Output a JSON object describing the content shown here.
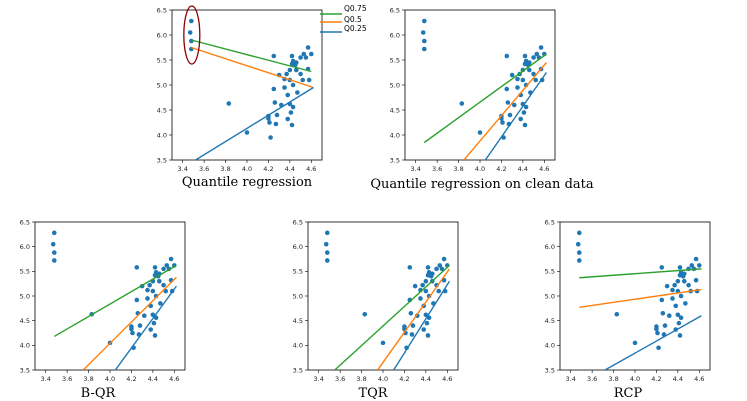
{
  "figure": {
    "colors": {
      "q75": "#2ca02c",
      "q50": "#ff7f0e",
      "q25": "#1f77b4",
      "points": "#1f77b4",
      "highlight": "#8b0000"
    },
    "legend": {
      "q75": "Q0.75",
      "q50": "Q0.5",
      "q25": "Q0.25"
    }
  },
  "chart_data": [
    {
      "type": "scatter",
      "title": "Quantile regression",
      "xlim": [
        3.3,
        4.7
      ],
      "ylim": [
        3.5,
        6.5
      ],
      "xticks": [
        "3.4",
        "3.6",
        "3.8",
        "4.0",
        "4.2",
        "4.4",
        "4.6"
      ],
      "yticks": [
        "3.5",
        "4.0",
        "4.5",
        "5.0",
        "5.5",
        "6.0",
        "6.5"
      ],
      "highlight_outliers": true,
      "legend": true,
      "points": [
        [
          3.48,
          6.28
        ],
        [
          3.47,
          6.05
        ],
        [
          3.48,
          5.88
        ],
        [
          3.48,
          5.72
        ],
        [
          3.83,
          4.63
        ],
        [
          4.0,
          4.05
        ],
        [
          4.2,
          4.38
        ],
        [
          4.2,
          4.33
        ],
        [
          4.21,
          4.25
        ],
        [
          4.22,
          3.95
        ],
        [
          4.25,
          5.58
        ],
        [
          4.25,
          4.92
        ],
        [
          4.26,
          4.65
        ],
        [
          4.28,
          4.4
        ],
        [
          4.27,
          4.22
        ],
        [
          4.3,
          5.2
        ],
        [
          4.32,
          4.6
        ],
        [
          4.35,
          4.95
        ],
        [
          4.35,
          5.12
        ],
        [
          4.37,
          5.22
        ],
        [
          4.38,
          4.8
        ],
        [
          4.38,
          4.32
        ],
        [
          4.4,
          5.3
        ],
        [
          4.4,
          5.1
        ],
        [
          4.4,
          4.62
        ],
        [
          4.41,
          4.45
        ],
        [
          4.42,
          5.58
        ],
        [
          4.42,
          5.42
        ],
        [
          4.42,
          4.2
        ],
        [
          4.43,
          5.48
        ],
        [
          4.43,
          5.0
        ],
        [
          4.43,
          4.56
        ],
        [
          4.45,
          5.4
        ],
        [
          4.46,
          5.45
        ],
        [
          4.46,
          5.3
        ],
        [
          4.47,
          4.85
        ],
        [
          4.5,
          5.55
        ],
        [
          4.5,
          5.22
        ],
        [
          4.52,
          5.1
        ],
        [
          4.53,
          5.62
        ],
        [
          4.55,
          5.55
        ],
        [
          4.57,
          5.75
        ],
        [
          4.57,
          5.32
        ],
        [
          4.58,
          5.1
        ],
        [
          4.6,
          5.62
        ]
      ],
      "series": [
        {
          "name": "Q0.75",
          "x": [
            3.48,
            4.6
          ],
          "y": [
            5.9,
            5.27
          ]
        },
        {
          "name": "Q0.5",
          "x": [
            3.48,
            4.62
          ],
          "y": [
            5.75,
            4.95
          ]
        },
        {
          "name": "Q0.25",
          "x": [
            3.52,
            4.62
          ],
          "y": [
            3.5,
            4.95
          ]
        }
      ]
    },
    {
      "type": "scatter",
      "title": "Quantile regression on clean data",
      "xlim": [
        3.3,
        4.7
      ],
      "ylim": [
        3.5,
        6.5
      ],
      "xticks": [
        "3.4",
        "3.6",
        "3.8",
        "4.0",
        "4.2",
        "4.4",
        "4.6"
      ],
      "yticks": [
        "3.5",
        "4.0",
        "4.5",
        "5.0",
        "5.5",
        "6.0",
        "6.5"
      ],
      "points": [
        [
          3.48,
          6.28
        ],
        [
          3.47,
          6.05
        ],
        [
          3.48,
          5.88
        ],
        [
          3.48,
          5.72
        ],
        [
          3.83,
          4.63
        ],
        [
          4.0,
          4.05
        ],
        [
          4.2,
          4.38
        ],
        [
          4.2,
          4.33
        ],
        [
          4.21,
          4.25
        ],
        [
          4.22,
          3.95
        ],
        [
          4.25,
          5.58
        ],
        [
          4.25,
          4.92
        ],
        [
          4.26,
          4.65
        ],
        [
          4.28,
          4.4
        ],
        [
          4.27,
          4.22
        ],
        [
          4.3,
          5.2
        ],
        [
          4.32,
          4.6
        ],
        [
          4.35,
          4.95
        ],
        [
          4.35,
          5.12
        ],
        [
          4.37,
          5.22
        ],
        [
          4.38,
          4.8
        ],
        [
          4.38,
          4.32
        ],
        [
          4.4,
          5.3
        ],
        [
          4.4,
          5.1
        ],
        [
          4.4,
          4.62
        ],
        [
          4.41,
          4.45
        ],
        [
          4.42,
          5.58
        ],
        [
          4.42,
          5.42
        ],
        [
          4.42,
          4.2
        ],
        [
          4.43,
          5.48
        ],
        [
          4.43,
          5.0
        ],
        [
          4.43,
          4.56
        ],
        [
          4.45,
          5.4
        ],
        [
          4.46,
          5.45
        ],
        [
          4.46,
          5.3
        ],
        [
          4.47,
          4.85
        ],
        [
          4.5,
          5.55
        ],
        [
          4.5,
          5.22
        ],
        [
          4.52,
          5.1
        ],
        [
          4.53,
          5.62
        ],
        [
          4.55,
          5.55
        ],
        [
          4.57,
          5.75
        ],
        [
          4.57,
          5.32
        ],
        [
          4.58,
          5.1
        ],
        [
          4.6,
          5.62
        ]
      ],
      "series": [
        {
          "name": "Q0.75",
          "x": [
            3.48,
            4.62
          ],
          "y": [
            3.85,
            5.62
          ]
        },
        {
          "name": "Q0.5",
          "x": [
            3.85,
            4.62
          ],
          "y": [
            3.5,
            5.45
          ]
        },
        {
          "name": "Q0.25",
          "x": [
            4.05,
            4.62
          ],
          "y": [
            3.5,
            5.25
          ]
        }
      ]
    },
    {
      "type": "scatter",
      "title": "B-QR",
      "xlim": [
        3.3,
        4.7
      ],
      "ylim": [
        3.5,
        6.5
      ],
      "xticks": [
        "3.4",
        "3.6",
        "3.8",
        "4.0",
        "4.2",
        "4.4",
        "4.6"
      ],
      "yticks": [
        "3.5",
        "4.0",
        "4.5",
        "5.0",
        "5.5",
        "6.0",
        "6.5"
      ],
      "points": [
        [
          3.48,
          6.28
        ],
        [
          3.47,
          6.05
        ],
        [
          3.48,
          5.88
        ],
        [
          3.48,
          5.72
        ],
        [
          3.83,
          4.63
        ],
        [
          4.0,
          4.05
        ],
        [
          4.2,
          4.38
        ],
        [
          4.2,
          4.33
        ],
        [
          4.21,
          4.25
        ],
        [
          4.22,
          3.95
        ],
        [
          4.25,
          5.58
        ],
        [
          4.25,
          4.92
        ],
        [
          4.26,
          4.65
        ],
        [
          4.28,
          4.4
        ],
        [
          4.27,
          4.22
        ],
        [
          4.3,
          5.2
        ],
        [
          4.32,
          4.6
        ],
        [
          4.35,
          4.95
        ],
        [
          4.35,
          5.12
        ],
        [
          4.37,
          5.22
        ],
        [
          4.38,
          4.8
        ],
        [
          4.38,
          4.32
        ],
        [
          4.4,
          5.3
        ],
        [
          4.4,
          5.1
        ],
        [
          4.4,
          4.62
        ],
        [
          4.41,
          4.45
        ],
        [
          4.42,
          5.58
        ],
        [
          4.42,
          5.42
        ],
        [
          4.42,
          4.2
        ],
        [
          4.43,
          5.48
        ],
        [
          4.43,
          5.0
        ],
        [
          4.43,
          4.56
        ],
        [
          4.45,
          5.4
        ],
        [
          4.46,
          5.45
        ],
        [
          4.46,
          5.3
        ],
        [
          4.47,
          4.85
        ],
        [
          4.5,
          5.55
        ],
        [
          4.5,
          5.22
        ],
        [
          4.52,
          5.1
        ],
        [
          4.53,
          5.62
        ],
        [
          4.55,
          5.55
        ],
        [
          4.57,
          5.75
        ],
        [
          4.57,
          5.32
        ],
        [
          4.58,
          5.1
        ],
        [
          4.6,
          5.62
        ]
      ],
      "series": [
        {
          "name": "Q0.75",
          "x": [
            3.48,
            4.62
          ],
          "y": [
            4.18,
            5.62
          ]
        },
        {
          "name": "Q0.5",
          "x": [
            3.75,
            4.62
          ],
          "y": [
            3.5,
            5.38
          ]
        },
        {
          "name": "Q0.25",
          "x": [
            4.05,
            4.62
          ],
          "y": [
            3.5,
            5.2
          ]
        }
      ]
    },
    {
      "type": "scatter",
      "title": "TQR",
      "xlim": [
        3.3,
        4.7
      ],
      "ylim": [
        3.5,
        6.5
      ],
      "xticks": [
        "3.4",
        "3.6",
        "3.8",
        "4.0",
        "4.2",
        "4.4",
        "4.6"
      ],
      "yticks": [
        "3.5",
        "4.0",
        "4.5",
        "5.0",
        "5.5",
        "6.0",
        "6.5"
      ],
      "points": [
        [
          3.48,
          6.28
        ],
        [
          3.47,
          6.05
        ],
        [
          3.48,
          5.88
        ],
        [
          3.48,
          5.72
        ],
        [
          3.83,
          4.63
        ],
        [
          4.0,
          4.05
        ],
        [
          4.2,
          4.38
        ],
        [
          4.2,
          4.33
        ],
        [
          4.21,
          4.25
        ],
        [
          4.22,
          3.95
        ],
        [
          4.25,
          5.58
        ],
        [
          4.25,
          4.92
        ],
        [
          4.26,
          4.65
        ],
        [
          4.28,
          4.4
        ],
        [
          4.27,
          4.22
        ],
        [
          4.3,
          5.2
        ],
        [
          4.32,
          4.6
        ],
        [
          4.35,
          4.95
        ],
        [
          4.35,
          5.12
        ],
        [
          4.37,
          5.22
        ],
        [
          4.38,
          4.8
        ],
        [
          4.38,
          4.32
        ],
        [
          4.4,
          5.3
        ],
        [
          4.4,
          5.1
        ],
        [
          4.4,
          4.62
        ],
        [
          4.41,
          4.45
        ],
        [
          4.42,
          5.58
        ],
        [
          4.42,
          5.42
        ],
        [
          4.42,
          4.2
        ],
        [
          4.43,
          5.48
        ],
        [
          4.43,
          5.0
        ],
        [
          4.43,
          4.56
        ],
        [
          4.45,
          5.4
        ],
        [
          4.46,
          5.45
        ],
        [
          4.46,
          5.3
        ],
        [
          4.47,
          4.85
        ],
        [
          4.5,
          5.55
        ],
        [
          4.5,
          5.22
        ],
        [
          4.52,
          5.1
        ],
        [
          4.53,
          5.62
        ],
        [
          4.55,
          5.55
        ],
        [
          4.57,
          5.75
        ],
        [
          4.57,
          5.32
        ],
        [
          4.58,
          5.1
        ],
        [
          4.6,
          5.62
        ]
      ],
      "series": [
        {
          "name": "Q0.75",
          "x": [
            3.55,
            4.62
          ],
          "y": [
            3.5,
            5.62
          ]
        },
        {
          "name": "Q0.5",
          "x": [
            3.95,
            4.62
          ],
          "y": [
            3.5,
            5.55
          ]
        },
        {
          "name": "Q0.25",
          "x": [
            4.1,
            4.62
          ],
          "y": [
            3.5,
            5.3
          ]
        }
      ]
    },
    {
      "type": "scatter",
      "title": "RCP",
      "xlim": [
        3.3,
        4.7
      ],
      "ylim": [
        3.5,
        6.5
      ],
      "xticks": [
        "3.4",
        "3.6",
        "3.8",
        "4.0",
        "4.2",
        "4.4",
        "4.6"
      ],
      "yticks": [
        "3.5",
        "4.0",
        "4.5",
        "5.0",
        "5.5",
        "6.0",
        "6.5"
      ],
      "points": [
        [
          3.48,
          6.28
        ],
        [
          3.47,
          6.05
        ],
        [
          3.48,
          5.88
        ],
        [
          3.48,
          5.72
        ],
        [
          3.83,
          4.63
        ],
        [
          4.0,
          4.05
        ],
        [
          4.2,
          4.38
        ],
        [
          4.2,
          4.33
        ],
        [
          4.21,
          4.25
        ],
        [
          4.22,
          3.95
        ],
        [
          4.25,
          5.58
        ],
        [
          4.25,
          4.92
        ],
        [
          4.26,
          4.65
        ],
        [
          4.28,
          4.4
        ],
        [
          4.27,
          4.22
        ],
        [
          4.3,
          5.2
        ],
        [
          4.32,
          4.6
        ],
        [
          4.35,
          4.95
        ],
        [
          4.35,
          5.12
        ],
        [
          4.37,
          5.22
        ],
        [
          4.38,
          4.8
        ],
        [
          4.38,
          4.32
        ],
        [
          4.4,
          5.3
        ],
        [
          4.4,
          5.1
        ],
        [
          4.4,
          4.62
        ],
        [
          4.41,
          4.45
        ],
        [
          4.42,
          5.58
        ],
        [
          4.42,
          5.42
        ],
        [
          4.42,
          4.2
        ],
        [
          4.43,
          5.48
        ],
        [
          4.43,
          5.0
        ],
        [
          4.43,
          4.56
        ],
        [
          4.45,
          5.4
        ],
        [
          4.46,
          5.45
        ],
        [
          4.46,
          5.3
        ],
        [
          4.47,
          4.85
        ],
        [
          4.5,
          5.55
        ],
        [
          4.5,
          5.22
        ],
        [
          4.52,
          5.1
        ],
        [
          4.53,
          5.62
        ],
        [
          4.55,
          5.55
        ],
        [
          4.57,
          5.75
        ],
        [
          4.57,
          5.32
        ],
        [
          4.58,
          5.1
        ],
        [
          4.6,
          5.62
        ]
      ],
      "series": [
        {
          "name": "Q0.75",
          "x": [
            3.48,
            4.62
          ],
          "y": [
            5.37,
            5.55
          ]
        },
        {
          "name": "Q0.5",
          "x": [
            3.48,
            4.62
          ],
          "y": [
            4.77,
            5.13
          ]
        },
        {
          "name": "Q0.25",
          "x": [
            3.72,
            4.62
          ],
          "y": [
            3.5,
            4.6
          ]
        }
      ]
    }
  ]
}
